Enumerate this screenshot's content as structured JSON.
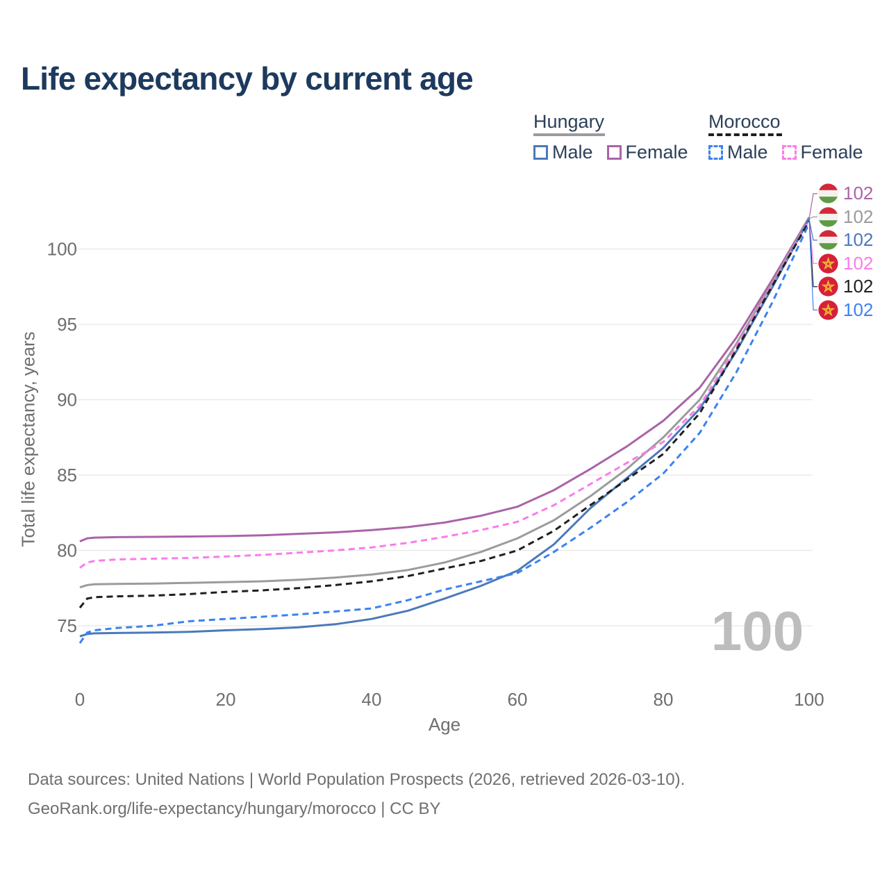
{
  "title": "Life expectancy by current age",
  "watermark": "100",
  "colors": {
    "title": "#1d3a5e",
    "legend_text": "#2c3f58",
    "axis_text": "#6e6e6e",
    "gridline": "#e7e7e7",
    "watermark": "#bdbdbd",
    "footer_text": "#6f6f6f",
    "hungary_male": "#4b79ba",
    "hungary_female": "#aa63a8",
    "hungary_total": "#9b9b9b",
    "morocco_male": "#3b82f0",
    "morocco_female": "#fb7ce8",
    "morocco_total": "#1f1f1f"
  },
  "legend": {
    "hungary": {
      "country": "Hungary",
      "male": "Male",
      "female": "Female"
    },
    "morocco": {
      "country": "Morocco",
      "male": "Male",
      "female": "Female"
    }
  },
  "endpoint_labels": [
    {
      "country": "Hungary",
      "series": "Hungary Female",
      "value": "102",
      "color": "#aa63a8",
      "flag": "hungary-flag"
    },
    {
      "country": "Hungary",
      "series": "Hungary Both sexes",
      "value": "102",
      "color": "#9b9b9b",
      "flag": "hungary-flag"
    },
    {
      "country": "Hungary",
      "series": "Hungary Male",
      "value": "102",
      "color": "#4b79ba",
      "flag": "hungary-flag"
    },
    {
      "country": "Morocco",
      "series": "Morocco Female",
      "value": "102",
      "color": "#fb7ce8",
      "flag": "morocco-flag"
    },
    {
      "country": "Morocco",
      "series": "Morocco Both sexes",
      "value": "102",
      "color": "#1f1f1f",
      "flag": "morocco-flag"
    },
    {
      "country": "Morocco",
      "series": "Morocco Male",
      "value": "102",
      "color": "#3b82f0",
      "flag": "morocco-flag"
    }
  ],
  "footer": {
    "line1": "Data sources: United Nations | World Population Prospects (2026, retrieved 2026-03-10).",
    "line2": "GeoRank.org/life-expectancy/hungary/morocco | CC BY"
  },
  "chart_data": {
    "type": "line",
    "title": "Life expectancy by current age",
    "xlabel": "Age",
    "ylabel": "Total life expectancy, years",
    "xlim": [
      0,
      100
    ],
    "ylim": [
      73,
      103
    ],
    "xticks": [
      0,
      20,
      40,
      60,
      80,
      100
    ],
    "yticks": [
      75,
      80,
      85,
      90,
      95,
      100
    ],
    "grid": "horizontal",
    "legend_position": "top-right",
    "x": [
      0,
      1,
      2,
      5,
      10,
      15,
      20,
      25,
      30,
      35,
      40,
      45,
      50,
      55,
      60,
      65,
      70,
      75,
      80,
      85,
      90,
      95,
      100
    ],
    "series": [
      {
        "id": "hungary-female",
        "name": "Hungary Female",
        "country": "Hungary",
        "sex": "Female",
        "line": "solid",
        "color": "#aa63a8",
        "end_label": "102",
        "values": [
          80.6,
          80.8,
          80.85,
          80.88,
          80.9,
          80.92,
          80.95,
          81.0,
          81.1,
          81.2,
          81.35,
          81.55,
          81.85,
          82.3,
          82.9,
          84.0,
          85.4,
          86.9,
          88.6,
          90.8,
          94.1,
          98.0,
          102.1
        ]
      },
      {
        "id": "hungary-total",
        "name": "Hungary Both sexes",
        "country": "Hungary",
        "sex": "Both sexes",
        "line": "solid",
        "color": "#9b9b9b",
        "end_label": "102",
        "values": [
          77.55,
          77.7,
          77.75,
          77.78,
          77.8,
          77.85,
          77.9,
          77.95,
          78.05,
          78.2,
          78.4,
          78.7,
          79.2,
          79.9,
          80.8,
          82.0,
          83.6,
          85.4,
          87.5,
          90.0,
          93.7,
          97.8,
          102.05
        ]
      },
      {
        "id": "hungary-male",
        "name": "Hungary Male",
        "country": "Hungary",
        "sex": "Male",
        "line": "solid",
        "color": "#4b79ba",
        "end_label": "102",
        "values": [
          74.3,
          74.45,
          74.5,
          74.52,
          74.55,
          74.6,
          74.7,
          74.78,
          74.9,
          75.1,
          75.45,
          76.0,
          76.8,
          77.65,
          78.65,
          80.4,
          82.8,
          84.8,
          86.8,
          89.4,
          93.2,
          97.5,
          102.0
        ]
      },
      {
        "id": "morocco-female",
        "name": "Morocco Female",
        "country": "Morocco",
        "sex": "Female",
        "line": "dashed",
        "color": "#fb7ce8",
        "end_label": "102",
        "values": [
          78.85,
          79.2,
          79.3,
          79.4,
          79.45,
          79.5,
          79.6,
          79.7,
          79.85,
          80.0,
          80.2,
          80.5,
          80.9,
          81.35,
          81.9,
          83.0,
          84.4,
          85.8,
          87.2,
          89.6,
          93.5,
          97.7,
          101.9
        ]
      },
      {
        "id": "morocco-total",
        "name": "Morocco Both sexes",
        "country": "Morocco",
        "sex": "Both sexes",
        "line": "dashed",
        "color": "#1f1f1f",
        "end_label": "102",
        "values": [
          76.2,
          76.8,
          76.9,
          76.95,
          77.0,
          77.1,
          77.25,
          77.35,
          77.5,
          77.7,
          77.95,
          78.3,
          78.8,
          79.3,
          80.0,
          81.3,
          83.0,
          84.7,
          86.4,
          89.1,
          93.3,
          97.6,
          101.85
        ]
      },
      {
        "id": "morocco-male",
        "name": "Morocco Male",
        "country": "Morocco",
        "sex": "Male",
        "line": "dashed",
        "color": "#3b82f0",
        "end_label": "102",
        "values": [
          73.85,
          74.55,
          74.7,
          74.85,
          75.0,
          75.3,
          75.45,
          75.6,
          75.75,
          75.95,
          76.15,
          76.7,
          77.4,
          77.95,
          78.5,
          79.9,
          81.5,
          83.2,
          85.1,
          87.8,
          91.8,
          96.5,
          101.7
        ]
      }
    ]
  }
}
